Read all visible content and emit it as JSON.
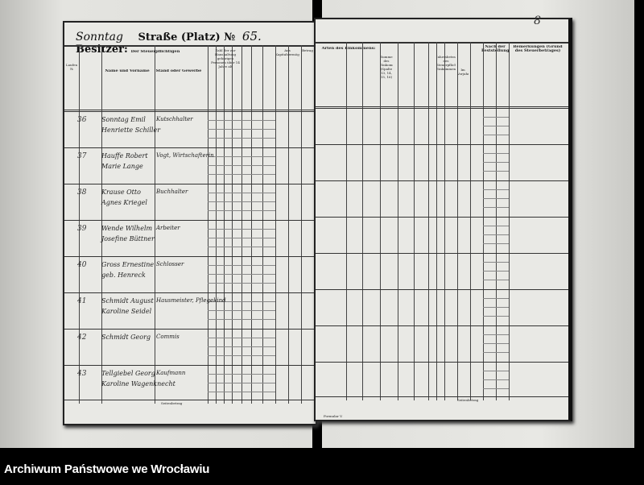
{
  "left_page": {
    "street_handwritten": "Sonntag",
    "street_label": "Straße (Platz)",
    "number_sign": "№",
    "house_number": "65.",
    "owner_label": "Besitzer:",
    "headers": {
      "running_no": "Laufende №",
      "col_name": "Name und Vorname",
      "col_status": "Stand oder Gewerbe",
      "group_taxpayers": "Der Steuerpflichtigen",
      "group_household": "Zahl der zur Haushaltung gehörigen Personen über 14 Jahre alt",
      "group_income": "Aus Kapitalvermögen",
      "col_notes": "Betrag"
    },
    "rows": [
      {
        "no": "36",
        "name1": "Sonntag Emil",
        "name2": "Henriette Schiller",
        "status": "Kutschhalter"
      },
      {
        "no": "37",
        "name1": "Hauffe Robert",
        "name2": "Marie Lange",
        "status": "Vogt, Wirtschafterin"
      },
      {
        "no": "38",
        "name1": "Krause Otto",
        "name2": "Agnes Kriegel",
        "status": "Buchhalter"
      },
      {
        "no": "39",
        "name1": "Wende Wilhelm",
        "name2": "Josefine Büttner",
        "status": "Arbeiter"
      },
      {
        "no": "40",
        "name1": "Gross Ernestine",
        "name2": "geb. Henreck",
        "status": "Schlosser"
      },
      {
        "no": "41",
        "name1": "Schmidt August",
        "name2": "Karoline Seidel",
        "status": "Hausmeister, Pflegekind"
      },
      {
        "no": "42",
        "name1": "Schmidt Georg",
        "name2": "",
        "status": "Commis"
      },
      {
        "no": "43",
        "name1": "Tellgiebel Georg",
        "name2": "Karoline Wagenknecht",
        "status": "Kaufmann"
      }
    ],
    "footer_label": "Seitenbetrag"
  },
  "right_page": {
    "page_number": "8",
    "headers": {
      "group_income_types": "Arten des Einkommens:",
      "col_sum": "Summe des Einkommens (Spalte 13, 14, 15, 16)",
      "col_annual": "Jahresbetrag des Steuerpflichtigen Einkommens",
      "col_prev": "Im Vorjahre",
      "group_rate": "Nach der Feststellung",
      "col_remarks": "Bemerkungen (Grund des Steuerbetrages)"
    },
    "footer_label": "Seitenbetrag",
    "form_note": "Formular V."
  },
  "caption": "Archiwum Państwowe we Wrocławiu"
}
